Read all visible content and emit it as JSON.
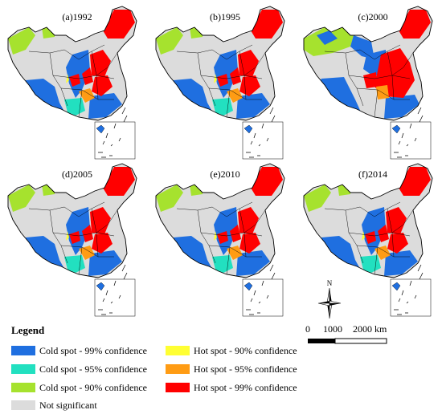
{
  "panels": [
    {
      "label": "(a)1992"
    },
    {
      "label": "(b)1995"
    },
    {
      "label": "(c)2000"
    },
    {
      "label": "(d)2005"
    },
    {
      "label": "(e)2010"
    },
    {
      "label": "(f)2014"
    }
  ],
  "legend": {
    "title": "Legend",
    "items": [
      {
        "label": "Cold spot - 99% confidence",
        "color": "#1f6fe0"
      },
      {
        "label": "Cold spot - 95% confidence",
        "color": "#22e0c0"
      },
      {
        "label": "Cold spot - 90% confidence",
        "color": "#a6e22e"
      },
      {
        "label": "Not significant",
        "color": "#dcdcdc"
      },
      {
        "label": "Hot spot - 90% confidence",
        "color": "#ffff33"
      },
      {
        "label": "Hot spot - 95% confidence",
        "color": "#ff9c14"
      },
      {
        "label": "Hot spot - 99% confidence",
        "color": "#ff0000"
      }
    ]
  },
  "compass": {
    "north_label": "N"
  },
  "scale": {
    "tick_labels": [
      "0",
      "1000",
      "2000 km"
    ]
  }
}
